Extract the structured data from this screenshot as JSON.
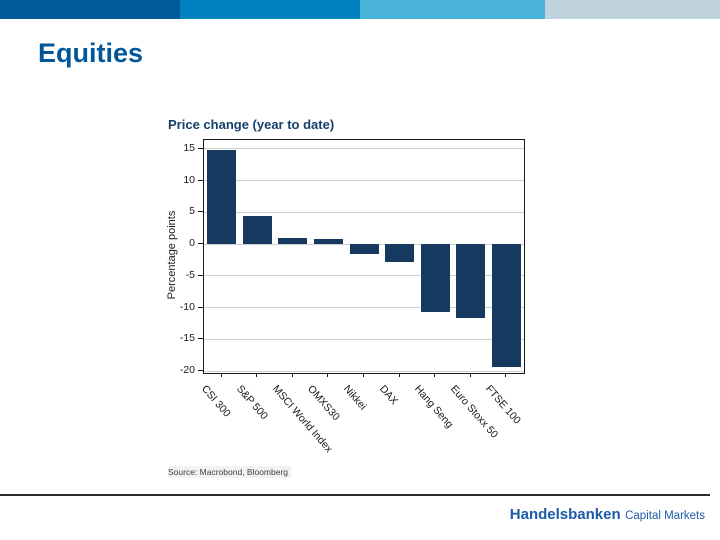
{
  "slide": {
    "title": "Equities",
    "title_color": "#00589b"
  },
  "top_bar": {
    "segment_colors": [
      "#00599a",
      "#0082c0",
      "#48b2d9",
      "#c0d4e0"
    ]
  },
  "chart_data": {
    "type": "bar",
    "title": "Price change (year to date)",
    "title_color": "#173f6b",
    "ylabel": "Percentage points",
    "xlabel": "",
    "categories": [
      "CSI 300",
      "S&P 500",
      "MSCI World Index",
      "OMXS30",
      "Nikkei",
      "DAX",
      "Hang Seng",
      "Euro Stoxx 50",
      "FTSE 100"
    ],
    "values": [
      14.9,
      4.4,
      1.0,
      0.8,
      -1.5,
      -2.8,
      -10.7,
      -11.7,
      -19.3
    ],
    "ylim": [
      -20.3,
      16.4
    ],
    "yticks": [
      15,
      10,
      5,
      0,
      -5,
      -10,
      -15,
      -20
    ],
    "grid": "horizontal",
    "legend": "none",
    "bar_color": "#16395f",
    "source": "Source: Macrobond, Bloomberg"
  },
  "footer": {
    "brand": "Handelsbanken",
    "brand_suffix": "Capital Markets",
    "brand_color": "#1d5aa8"
  }
}
